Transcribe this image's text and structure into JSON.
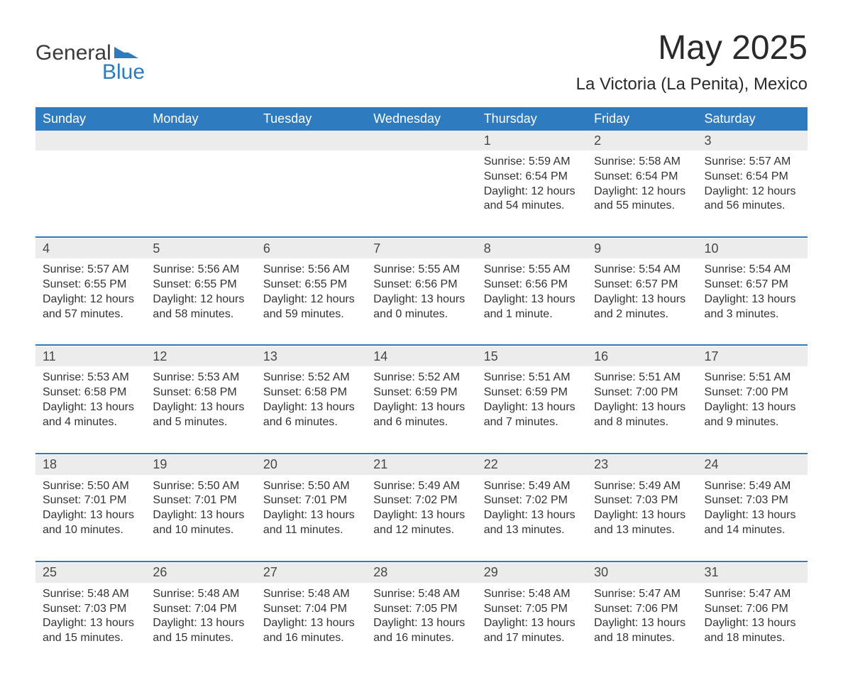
{
  "brand": {
    "word1": "General",
    "word2": "Blue",
    "icon_color": "#2f7bbf"
  },
  "title": "May 2025",
  "location": "La Victoria (La Penita), Mexico",
  "header_bg": "#2f7bbf",
  "header_fg": "#ffffff",
  "daynum_bg": "#ececec",
  "text_color": "#333333",
  "day_headers": [
    "Sunday",
    "Monday",
    "Tuesday",
    "Wednesday",
    "Thursday",
    "Friday",
    "Saturday"
  ],
  "weeks": [
    {
      "days": [
        null,
        null,
        null,
        null,
        {
          "n": "1",
          "sunrise": "Sunrise: 5:59 AM",
          "sunset": "Sunset: 6:54 PM",
          "daylight": "Daylight: 12 hours and 54 minutes."
        },
        {
          "n": "2",
          "sunrise": "Sunrise: 5:58 AM",
          "sunset": "Sunset: 6:54 PM",
          "daylight": "Daylight: 12 hours and 55 minutes."
        },
        {
          "n": "3",
          "sunrise": "Sunrise: 5:57 AM",
          "sunset": "Sunset: 6:54 PM",
          "daylight": "Daylight: 12 hours and 56 minutes."
        }
      ]
    },
    {
      "days": [
        {
          "n": "4",
          "sunrise": "Sunrise: 5:57 AM",
          "sunset": "Sunset: 6:55 PM",
          "daylight": "Daylight: 12 hours and 57 minutes."
        },
        {
          "n": "5",
          "sunrise": "Sunrise: 5:56 AM",
          "sunset": "Sunset: 6:55 PM",
          "daylight": "Daylight: 12 hours and 58 minutes."
        },
        {
          "n": "6",
          "sunrise": "Sunrise: 5:56 AM",
          "sunset": "Sunset: 6:55 PM",
          "daylight": "Daylight: 12 hours and 59 minutes."
        },
        {
          "n": "7",
          "sunrise": "Sunrise: 5:55 AM",
          "sunset": "Sunset: 6:56 PM",
          "daylight": "Daylight: 13 hours and 0 minutes."
        },
        {
          "n": "8",
          "sunrise": "Sunrise: 5:55 AM",
          "sunset": "Sunset: 6:56 PM",
          "daylight": "Daylight: 13 hours and 1 minute."
        },
        {
          "n": "9",
          "sunrise": "Sunrise: 5:54 AM",
          "sunset": "Sunset: 6:57 PM",
          "daylight": "Daylight: 13 hours and 2 minutes."
        },
        {
          "n": "10",
          "sunrise": "Sunrise: 5:54 AM",
          "sunset": "Sunset: 6:57 PM",
          "daylight": "Daylight: 13 hours and 3 minutes."
        }
      ]
    },
    {
      "days": [
        {
          "n": "11",
          "sunrise": "Sunrise: 5:53 AM",
          "sunset": "Sunset: 6:58 PM",
          "daylight": "Daylight: 13 hours and 4 minutes."
        },
        {
          "n": "12",
          "sunrise": "Sunrise: 5:53 AM",
          "sunset": "Sunset: 6:58 PM",
          "daylight": "Daylight: 13 hours and 5 minutes."
        },
        {
          "n": "13",
          "sunrise": "Sunrise: 5:52 AM",
          "sunset": "Sunset: 6:58 PM",
          "daylight": "Daylight: 13 hours and 6 minutes."
        },
        {
          "n": "14",
          "sunrise": "Sunrise: 5:52 AM",
          "sunset": "Sunset: 6:59 PM",
          "daylight": "Daylight: 13 hours and 6 minutes."
        },
        {
          "n": "15",
          "sunrise": "Sunrise: 5:51 AM",
          "sunset": "Sunset: 6:59 PM",
          "daylight": "Daylight: 13 hours and 7 minutes."
        },
        {
          "n": "16",
          "sunrise": "Sunrise: 5:51 AM",
          "sunset": "Sunset: 7:00 PM",
          "daylight": "Daylight: 13 hours and 8 minutes."
        },
        {
          "n": "17",
          "sunrise": "Sunrise: 5:51 AM",
          "sunset": "Sunset: 7:00 PM",
          "daylight": "Daylight: 13 hours and 9 minutes."
        }
      ]
    },
    {
      "days": [
        {
          "n": "18",
          "sunrise": "Sunrise: 5:50 AM",
          "sunset": "Sunset: 7:01 PM",
          "daylight": "Daylight: 13 hours and 10 minutes."
        },
        {
          "n": "19",
          "sunrise": "Sunrise: 5:50 AM",
          "sunset": "Sunset: 7:01 PM",
          "daylight": "Daylight: 13 hours and 10 minutes."
        },
        {
          "n": "20",
          "sunrise": "Sunrise: 5:50 AM",
          "sunset": "Sunset: 7:01 PM",
          "daylight": "Daylight: 13 hours and 11 minutes."
        },
        {
          "n": "21",
          "sunrise": "Sunrise: 5:49 AM",
          "sunset": "Sunset: 7:02 PM",
          "daylight": "Daylight: 13 hours and 12 minutes."
        },
        {
          "n": "22",
          "sunrise": "Sunrise: 5:49 AM",
          "sunset": "Sunset: 7:02 PM",
          "daylight": "Daylight: 13 hours and 13 minutes."
        },
        {
          "n": "23",
          "sunrise": "Sunrise: 5:49 AM",
          "sunset": "Sunset: 7:03 PM",
          "daylight": "Daylight: 13 hours and 13 minutes."
        },
        {
          "n": "24",
          "sunrise": "Sunrise: 5:49 AM",
          "sunset": "Sunset: 7:03 PM",
          "daylight": "Daylight: 13 hours and 14 minutes."
        }
      ]
    },
    {
      "days": [
        {
          "n": "25",
          "sunrise": "Sunrise: 5:48 AM",
          "sunset": "Sunset: 7:03 PM",
          "daylight": "Daylight: 13 hours and 15 minutes."
        },
        {
          "n": "26",
          "sunrise": "Sunrise: 5:48 AM",
          "sunset": "Sunset: 7:04 PM",
          "daylight": "Daylight: 13 hours and 15 minutes."
        },
        {
          "n": "27",
          "sunrise": "Sunrise: 5:48 AM",
          "sunset": "Sunset: 7:04 PM",
          "daylight": "Daylight: 13 hours and 16 minutes."
        },
        {
          "n": "28",
          "sunrise": "Sunrise: 5:48 AM",
          "sunset": "Sunset: 7:05 PM",
          "daylight": "Daylight: 13 hours and 16 minutes."
        },
        {
          "n": "29",
          "sunrise": "Sunrise: 5:48 AM",
          "sunset": "Sunset: 7:05 PM",
          "daylight": "Daylight: 13 hours and 17 minutes."
        },
        {
          "n": "30",
          "sunrise": "Sunrise: 5:47 AM",
          "sunset": "Sunset: 7:06 PM",
          "daylight": "Daylight: 13 hours and 18 minutes."
        },
        {
          "n": "31",
          "sunrise": "Sunrise: 5:47 AM",
          "sunset": "Sunset: 7:06 PM",
          "daylight": "Daylight: 13 hours and 18 minutes."
        }
      ]
    }
  ]
}
